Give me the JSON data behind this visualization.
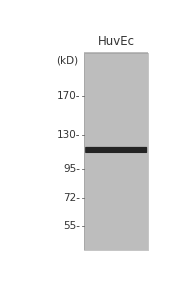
{
  "lane_label": "HuvEc",
  "kd_label": "(kD)",
  "markers": [
    170,
    130,
    95,
    72,
    55
  ],
  "band_color": "#1c1c1c",
  "band_alpha": 0.95,
  "gel_color_light": 0.75,
  "gel_color_dark": 0.72,
  "background_color": "#ffffff",
  "label_color": "#333333",
  "font_size_marker": 7.5,
  "font_size_title": 8.5,
  "font_size_kd": 7.5
}
